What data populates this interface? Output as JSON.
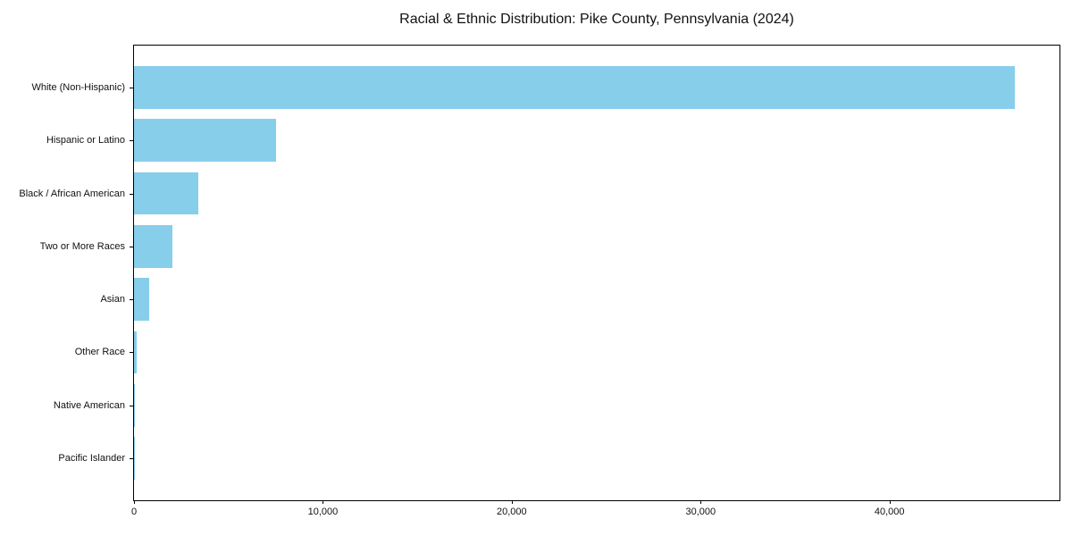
{
  "chart_data": {
    "type": "bar",
    "orientation": "horizontal",
    "title": "Racial & Ethnic Distribution: Pike County, Pennsylvania (2024)",
    "categories": [
      "White (Non-Hispanic)",
      "Hispanic or Latino",
      "Black / African American",
      "Two or More Races",
      "Asian",
      "Other Race",
      "Native American",
      "Pacific Islander"
    ],
    "values": [
      46650,
      7500,
      3400,
      2030,
      800,
      150,
      45,
      12
    ],
    "xlabel": "",
    "ylabel": "",
    "xlim": [
      0,
      49000
    ],
    "x_ticks": [
      0,
      10000,
      20000,
      30000,
      40000
    ],
    "x_tick_labels": [
      "0",
      "10,000",
      "20,000",
      "30,000",
      "40,000"
    ],
    "bar_color": "#87CEEB",
    "background": "#ffffff",
    "text_color": "#111111",
    "grid": false,
    "legend": "none"
  }
}
